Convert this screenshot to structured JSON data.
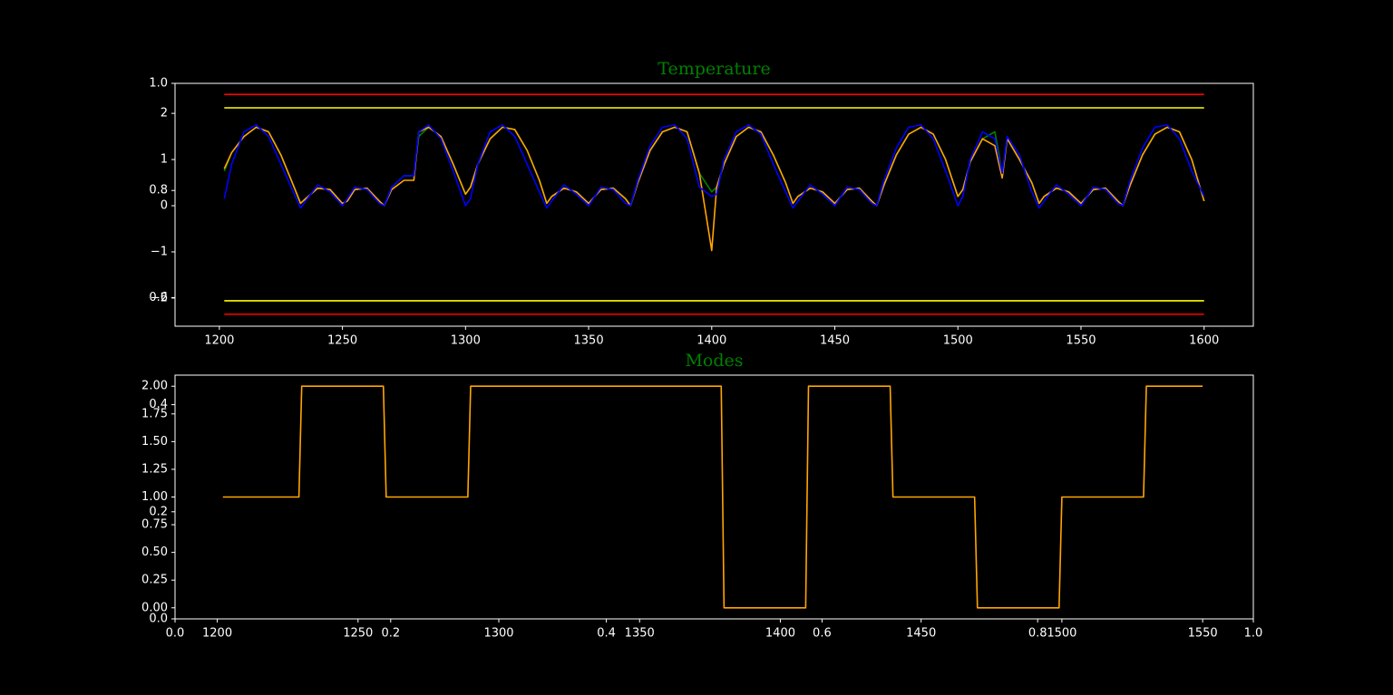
{
  "chart_data": [
    {
      "type": "line",
      "title": "Temperature",
      "xlim": [
        1182,
        1620
      ],
      "ylim": [
        -2.61,
        2.65
      ],
      "xticks": [
        1200,
        1250,
        1300,
        1350,
        1400,
        1450,
        1500,
        1550,
        1600
      ],
      "yticks": [
        {
          "value": -2,
          "label": "−2"
        },
        {
          "value": -1,
          "label": "−1"
        },
        0,
        1,
        2
      ],
      "series": [
        {
          "color": "#ff0000",
          "x": [
            1202,
            1600
          ],
          "values": [
            2.41,
            2.41
          ]
        },
        {
          "color": "#ffff00",
          "x": [
            1202,
            1600
          ],
          "values": [
            2.12,
            2.12
          ]
        },
        {
          "color": "#ffff00",
          "x": [
            1202,
            1600
          ],
          "values": [
            -2.06,
            -2.06
          ]
        },
        {
          "color": "#ff0000",
          "x": [
            1202,
            1600
          ],
          "values": [
            -2.35,
            -2.35
          ]
        },
        {
          "color": "#008000",
          "x": [
            1202,
            1205,
            1210,
            1215,
            1220,
            1225,
            1230,
            1233,
            1235,
            1240,
            1245,
            1250,
            1252,
            1255,
            1260,
            1265,
            1267,
            1270,
            1275,
            1279,
            1281,
            1285,
            1290,
            1295,
            1300,
            1302,
            1305,
            1310,
            1315,
            1320,
            1325,
            1330,
            1333,
            1335,
            1340,
            1345,
            1350,
            1355,
            1360,
            1365,
            1367,
            1370,
            1375,
            1380,
            1385,
            1390,
            1395,
            1400,
            1402,
            1405,
            1410,
            1415,
            1420,
            1425,
            1430,
            1433,
            1435,
            1440,
            1445,
            1450,
            1455,
            1460,
            1465,
            1467,
            1470,
            1475,
            1480,
            1485,
            1490,
            1495,
            1500,
            1502,
            1505,
            1510,
            1515,
            1518,
            1520,
            1525,
            1530,
            1533,
            1535,
            1540,
            1545,
            1550,
            1555,
            1560,
            1565,
            1567,
            1570,
            1575,
            1580,
            1585,
            1590,
            1595,
            1600
          ],
          "values": [
            0.75,
            1.15,
            1.5,
            1.7,
            1.6,
            1.1,
            0.45,
            0.05,
            0.15,
            0.38,
            0.35,
            0.05,
            0.1,
            0.35,
            0.38,
            0.1,
            0,
            0.4,
            0.65,
            0.65,
            1.5,
            1.7,
            1.5,
            0.9,
            0.25,
            0.4,
            0.9,
            1.45,
            1.7,
            1.65,
            1.2,
            0.55,
            0.05,
            0.2,
            0.38,
            0.3,
            0.05,
            0.35,
            0.38,
            0.15,
            0,
            0.5,
            1.2,
            1.6,
            1.7,
            1.6,
            0.7,
            0.3,
            0.4,
            0.9,
            1.5,
            1.7,
            1.6,
            1.1,
            0.5,
            0.05,
            0.2,
            0.38,
            0.3,
            0.05,
            0.35,
            0.38,
            0.1,
            0,
            0.45,
            1.1,
            1.55,
            1.7,
            1.55,
            1.0,
            0.2,
            0.35,
            0.95,
            1.45,
            1.6,
            0.7,
            1.45,
            1.0,
            0.5,
            0.05,
            0.2,
            0.38,
            0.3,
            0.05,
            0.35,
            0.38,
            0.1,
            0,
            0.45,
            1.1,
            1.55,
            1.7,
            1.6,
            1.0,
            0.1
          ]
        },
        {
          "color": "#ffa500",
          "x": [
            1202,
            1205,
            1210,
            1215,
            1220,
            1225,
            1230,
            1233,
            1235,
            1240,
            1245,
            1250,
            1252,
            1255,
            1260,
            1265,
            1267,
            1270,
            1275,
            1279,
            1281,
            1285,
            1290,
            1295,
            1300,
            1302,
            1305,
            1310,
            1315,
            1320,
            1325,
            1330,
            1333,
            1335,
            1340,
            1345,
            1350,
            1355,
            1360,
            1365,
            1367,
            1370,
            1375,
            1380,
            1385,
            1390,
            1395,
            1400,
            1402,
            1405,
            1410,
            1415,
            1420,
            1425,
            1430,
            1433,
            1435,
            1440,
            1445,
            1450,
            1455,
            1460,
            1465,
            1467,
            1470,
            1475,
            1480,
            1485,
            1490,
            1495,
            1500,
            1502,
            1505,
            1510,
            1515,
            1518,
            1520,
            1525,
            1530,
            1533,
            1535,
            1540,
            1545,
            1550,
            1555,
            1560,
            1565,
            1567,
            1570,
            1575,
            1580,
            1585,
            1590,
            1595,
            1600
          ],
          "values": [
            0.8,
            1.15,
            1.5,
            1.7,
            1.6,
            1.1,
            0.45,
            0.05,
            0.15,
            0.38,
            0.35,
            0.05,
            0.1,
            0.35,
            0.38,
            0.1,
            0,
            0.35,
            0.55,
            0.55,
            1.6,
            1.7,
            1.5,
            0.9,
            0.25,
            0.4,
            0.9,
            1.45,
            1.7,
            1.65,
            1.2,
            0.55,
            0.05,
            0.2,
            0.38,
            0.3,
            0.05,
            0.35,
            0.38,
            0.15,
            0,
            0.5,
            1.2,
            1.6,
            1.7,
            1.6,
            0.7,
            -0.97,
            0.4,
            0.9,
            1.5,
            1.7,
            1.6,
            1.1,
            0.5,
            0.05,
            0.2,
            0.38,
            0.3,
            0.05,
            0.35,
            0.38,
            0.1,
            0,
            0.45,
            1.1,
            1.55,
            1.7,
            1.55,
            1.0,
            0.2,
            0.35,
            0.95,
            1.45,
            1.3,
            0.6,
            1.45,
            1.0,
            0.5,
            0.05,
            0.2,
            0.38,
            0.3,
            0.05,
            0.35,
            0.38,
            0.1,
            0,
            0.45,
            1.1,
            1.55,
            1.7,
            1.6,
            1.0,
            0.1
          ]
        },
        {
          "color": "#0000ff",
          "x": [
            1202,
            1205,
            1210,
            1215,
            1220,
            1225,
            1230,
            1233,
            1235,
            1240,
            1245,
            1250,
            1252,
            1255,
            1260,
            1265,
            1267,
            1270,
            1275,
            1279,
            1281,
            1285,
            1290,
            1295,
            1300,
            1302,
            1305,
            1310,
            1315,
            1320,
            1325,
            1330,
            1333,
            1335,
            1340,
            1345,
            1350,
            1355,
            1360,
            1365,
            1367,
            1370,
            1375,
            1380,
            1385,
            1390,
            1395,
            1400,
            1402,
            1405,
            1410,
            1415,
            1420,
            1425,
            1430,
            1433,
            1435,
            1440,
            1445,
            1450,
            1455,
            1460,
            1465,
            1467,
            1470,
            1475,
            1480,
            1485,
            1490,
            1495,
            1500,
            1502,
            1505,
            1510,
            1515,
            1518,
            1520,
            1525,
            1530,
            1533,
            1535,
            1540,
            1545,
            1550,
            1555,
            1560,
            1565,
            1567,
            1570,
            1575,
            1580,
            1585,
            1590,
            1595,
            1600
          ],
          "values": [
            0.15,
            0.9,
            1.6,
            1.75,
            1.5,
            0.9,
            0.3,
            -0.05,
            0.1,
            0.45,
            0.3,
            0.0,
            0.15,
            0.4,
            0.35,
            0.05,
            0.0,
            0.4,
            0.65,
            0.65,
            1.6,
            1.75,
            1.45,
            0.75,
            0.0,
            0.15,
            0.9,
            1.6,
            1.75,
            1.5,
            0.9,
            0.3,
            -0.05,
            0.1,
            0.45,
            0.25,
            0.0,
            0.4,
            0.35,
            0.05,
            0.0,
            0.55,
            1.3,
            1.7,
            1.75,
            1.45,
            0.4,
            0.2,
            0.25,
            1.0,
            1.6,
            1.75,
            1.55,
            0.9,
            0.3,
            -0.05,
            0.1,
            0.45,
            0.25,
            0.0,
            0.4,
            0.35,
            0.05,
            0.0,
            0.55,
            1.25,
            1.7,
            1.75,
            1.45,
            0.75,
            0.0,
            0.2,
            1.0,
            1.6,
            1.45,
            0.7,
            1.5,
            1.1,
            0.3,
            -0.05,
            0.1,
            0.45,
            0.25,
            0.0,
            0.4,
            0.35,
            0.05,
            0.0,
            0.55,
            1.25,
            1.7,
            1.75,
            1.45,
            0.75,
            0.2
          ]
        }
      ]
    },
    {
      "type": "line",
      "title": "Modes",
      "xlim": [
        1185,
        1568
      ],
      "ylim": [
        -0.1,
        2.1
      ],
      "xticks": [
        1200,
        1250,
        1300,
        1350,
        1400,
        1450,
        1500,
        1550
      ],
      "yticks": [
        {
          "value": 0,
          "label": "0.00"
        },
        {
          "value": 0.25,
          "label": "0.25"
        },
        {
          "value": 0.5,
          "label": "0.50"
        },
        {
          "value": 0.75,
          "label": "0.75"
        },
        {
          "value": 1,
          "label": "1.00"
        },
        {
          "value": 1.25,
          "label": "1.25"
        },
        {
          "value": 1.5,
          "label": "1.50"
        },
        {
          "value": 1.75,
          "label": "1.75"
        },
        {
          "value": 2,
          "label": "2.00"
        }
      ],
      "series": [
        {
          "color": "#ffa500",
          "x": [
            1202,
            1229,
            1230,
            1259,
            1260,
            1289,
            1290,
            1379,
            1380,
            1409,
            1410,
            1439,
            1440,
            1469,
            1470,
            1499,
            1500,
            1529,
            1530,
            1550
          ],
          "values": [
            1,
            1,
            2,
            2,
            1,
            1,
            2,
            2,
            0,
            0,
            2,
            2,
            1,
            1,
            0,
            0,
            1,
            1,
            2,
            2
          ]
        }
      ]
    },
    {
      "type": "axes",
      "xlim": [
        0,
        1
      ],
      "ylim": [
        0,
        1
      ],
      "xticks": [
        {
          "value": 0,
          "label": "0.0"
        },
        {
          "value": 0.2,
          "label": "0.2"
        },
        {
          "value": 0.4,
          "label": "0.4"
        },
        {
          "value": 0.6,
          "label": "0.6"
        },
        {
          "value": 0.8,
          "label": "0.8"
        },
        {
          "value": 1,
          "label": "1.0"
        }
      ],
      "yticks": [
        {
          "value": 0,
          "label": "0.0"
        },
        {
          "value": 0.2,
          "label": "0.2"
        },
        {
          "value": 0.4,
          "label": "0.4"
        },
        {
          "value": 0.6,
          "label": "0.6"
        },
        {
          "value": 0.8,
          "label": "0.8"
        },
        {
          "value": 1,
          "label": "1.0"
        }
      ]
    }
  ]
}
